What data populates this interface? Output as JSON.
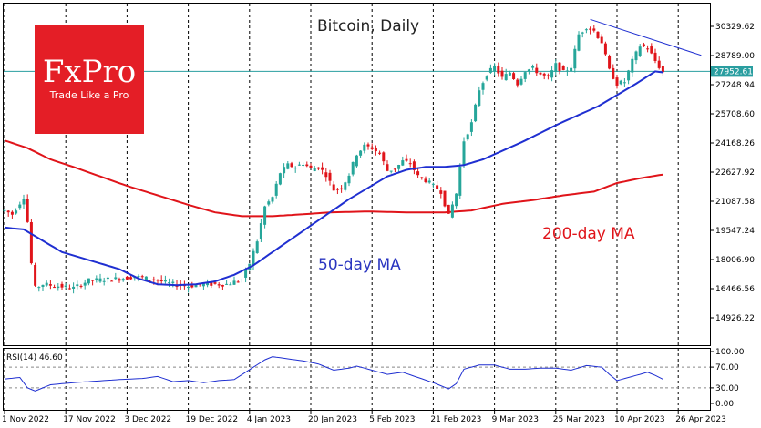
{
  "chart_data": [
    {
      "type": "candlestick",
      "title": "Bitcoin, Daily",
      "price_axis": {
        "ticks": [
          30329.62,
          28789.0,
          27248.94,
          25708.6,
          24168.26,
          22627.92,
          21087.58,
          19547.24,
          18006.9,
          16466.56,
          14926.22
        ],
        "current_price": "27952.61"
      },
      "x_ticks": [
        "1 Nov 2022",
        "17 Nov 2022",
        "3 Dec 2022",
        "19 Dec 2022",
        "4 Jan 2023",
        "20 Jan 2023",
        "5 Feb 2023",
        "21 Feb 2023",
        "9 Mar 2023",
        "25 Mar 2023",
        "10 Apr 2023",
        "26 Apr 2023"
      ],
      "series": [
        {
          "name": "50-day MA",
          "color": "#1f2fd1"
        },
        {
          "name": "200-day MA",
          "color": "#e0141a"
        }
      ],
      "trendline_color": "#1f2fd1",
      "bull_color": "#26a69a",
      "bear_color": "#e0141a",
      "price_anchors": [
        [
          0,
          20600
        ],
        [
          2,
          20400
        ],
        [
          4,
          21000
        ],
        [
          5,
          21300
        ],
        [
          6,
          20000
        ],
        [
          7,
          17800
        ],
        [
          8,
          16500
        ],
        [
          10,
          16700
        ],
        [
          14,
          16600
        ],
        [
          18,
          16500
        ],
        [
          22,
          16900
        ],
        [
          26,
          16950
        ],
        [
          30,
          17000
        ],
        [
          34,
          17100
        ],
        [
          36,
          17050
        ],
        [
          40,
          16900
        ],
        [
          44,
          16700
        ],
        [
          48,
          16600
        ],
        [
          52,
          16700
        ],
        [
          58,
          16700
        ],
        [
          62,
          16950
        ],
        [
          64,
          17800
        ],
        [
          66,
          19000
        ],
        [
          68,
          20800
        ],
        [
          70,
          21300
        ],
        [
          72,
          22600
        ],
        [
          74,
          23000
        ],
        [
          76,
          22900
        ],
        [
          78,
          23100
        ],
        [
          80,
          22800
        ],
        [
          82,
          22900
        ],
        [
          84,
          22500
        ],
        [
          86,
          21700
        ],
        [
          88,
          21800
        ],
        [
          90,
          22500
        ],
        [
          92,
          23600
        ],
        [
          94,
          24000
        ],
        [
          96,
          23900
        ],
        [
          98,
          23600
        ],
        [
          100,
          22700
        ],
        [
          102,
          22800
        ],
        [
          104,
          23200
        ],
        [
          106,
          23100
        ],
        [
          108,
          22400
        ],
        [
          110,
          22200
        ],
        [
          112,
          21900
        ],
        [
          114,
          21600
        ],
        [
          116,
          20300
        ],
        [
          118,
          21500
        ],
        [
          120,
          24300
        ],
        [
          122,
          25200
        ],
        [
          124,
          27000
        ],
        [
          126,
          27800
        ],
        [
          128,
          28200
        ],
        [
          130,
          27600
        ],
        [
          132,
          27900
        ],
        [
          134,
          27300
        ],
        [
          136,
          28000
        ],
        [
          138,
          28100
        ],
        [
          140,
          27800
        ],
        [
          142,
          27600
        ],
        [
          144,
          28300
        ],
        [
          146,
          27900
        ],
        [
          148,
          28200
        ],
        [
          150,
          29900
        ],
        [
          152,
          30300
        ],
        [
          154,
          30100
        ],
        [
          156,
          29500
        ],
        [
          158,
          28000
        ],
        [
          160,
          27300
        ],
        [
          162,
          27400
        ],
        [
          164,
          28500
        ],
        [
          166,
          29300
        ],
        [
          168,
          29200
        ],
        [
          170,
          28500
        ],
        [
          172,
          27900
        ]
      ],
      "ma50": [
        [
          0,
          19700
        ],
        [
          5,
          19600
        ],
        [
          10,
          19000
        ],
        [
          15,
          18400
        ],
        [
          20,
          18100
        ],
        [
          25,
          17800
        ],
        [
          30,
          17500
        ],
        [
          35,
          17000
        ],
        [
          40,
          16700
        ],
        [
          45,
          16650
        ],
        [
          50,
          16700
        ],
        [
          55,
          16850
        ],
        [
          60,
          17200
        ],
        [
          65,
          17700
        ],
        [
          70,
          18400
        ],
        [
          75,
          19100
        ],
        [
          80,
          19800
        ],
        [
          85,
          20500
        ],
        [
          90,
          21200
        ],
        [
          95,
          21800
        ],
        [
          100,
          22400
        ],
        [
          105,
          22750
        ],
        [
          110,
          22900
        ],
        [
          115,
          22900
        ],
        [
          120,
          23000
        ],
        [
          125,
          23300
        ],
        [
          130,
          23750
        ],
        [
          135,
          24200
        ],
        [
          140,
          24700
        ],
        [
          145,
          25200
        ],
        [
          150,
          25650
        ],
        [
          155,
          26100
        ],
        [
          160,
          26700
        ],
        [
          165,
          27300
        ],
        [
          170,
          27950
        ],
        [
          172,
          27900
        ]
      ],
      "ma200": [
        [
          0,
          24300
        ],
        [
          6,
          23900
        ],
        [
          12,
          23300
        ],
        [
          18,
          22900
        ],
        [
          25,
          22400
        ],
        [
          32,
          21900
        ],
        [
          40,
          21400
        ],
        [
          48,
          20900
        ],
        [
          55,
          20500
        ],
        [
          62,
          20300
        ],
        [
          70,
          20300
        ],
        [
          78,
          20400
        ],
        [
          85,
          20500
        ],
        [
          95,
          20550
        ],
        [
          105,
          20500
        ],
        [
          115,
          20500
        ],
        [
          122,
          20600
        ],
        [
          130,
          20950
        ],
        [
          138,
          21150
        ],
        [
          146,
          21400
        ],
        [
          154,
          21600
        ],
        [
          160,
          22050
        ],
        [
          166,
          22300
        ],
        [
          172,
          22500
        ]
      ],
      "trendline": [
        [
          153,
          30700
        ],
        [
          182,
          28800
        ]
      ],
      "annotations": {
        "ma50_label": "50-day MA",
        "ma200_label": "200-day MA"
      }
    },
    {
      "type": "line",
      "title": "RSI(14) 46.60",
      "y_ticks": [
        "100.00",
        "70.00",
        "30.00",
        "0.00"
      ],
      "reference_lines": [
        70,
        30
      ],
      "color": "#1f2fd1",
      "anchors": [
        [
          0,
          47
        ],
        [
          4,
          50
        ],
        [
          6,
          30
        ],
        [
          8,
          24
        ],
        [
          12,
          36
        ],
        [
          18,
          40
        ],
        [
          24,
          43
        ],
        [
          30,
          46
        ],
        [
          36,
          48
        ],
        [
          40,
          52
        ],
        [
          44,
          42
        ],
        [
          48,
          44
        ],
        [
          52,
          40
        ],
        [
          56,
          44
        ],
        [
          60,
          46
        ],
        [
          64,
          65
        ],
        [
          68,
          84
        ],
        [
          70,
          90
        ],
        [
          74,
          86
        ],
        [
          78,
          82
        ],
        [
          82,
          76
        ],
        [
          86,
          64
        ],
        [
          90,
          68
        ],
        [
          92,
          72
        ],
        [
          96,
          64
        ],
        [
          100,
          56
        ],
        [
          104,
          60
        ],
        [
          108,
          50
        ],
        [
          112,
          40
        ],
        [
          116,
          28
        ],
        [
          118,
          38
        ],
        [
          120,
          66
        ],
        [
          124,
          74
        ],
        [
          128,
          74
        ],
        [
          132,
          66
        ],
        [
          136,
          66
        ],
        [
          140,
          68
        ],
        [
          144,
          68
        ],
        [
          148,
          64
        ],
        [
          152,
          73
        ],
        [
          156,
          70
        ],
        [
          158,
          56
        ],
        [
          160,
          44
        ],
        [
          164,
          52
        ],
        [
          168,
          60
        ],
        [
          170,
          54
        ],
        [
          172,
          46.6
        ]
      ]
    }
  ],
  "logo": {
    "main": "FxPro",
    "tagline": "Trade Like a Pro"
  }
}
